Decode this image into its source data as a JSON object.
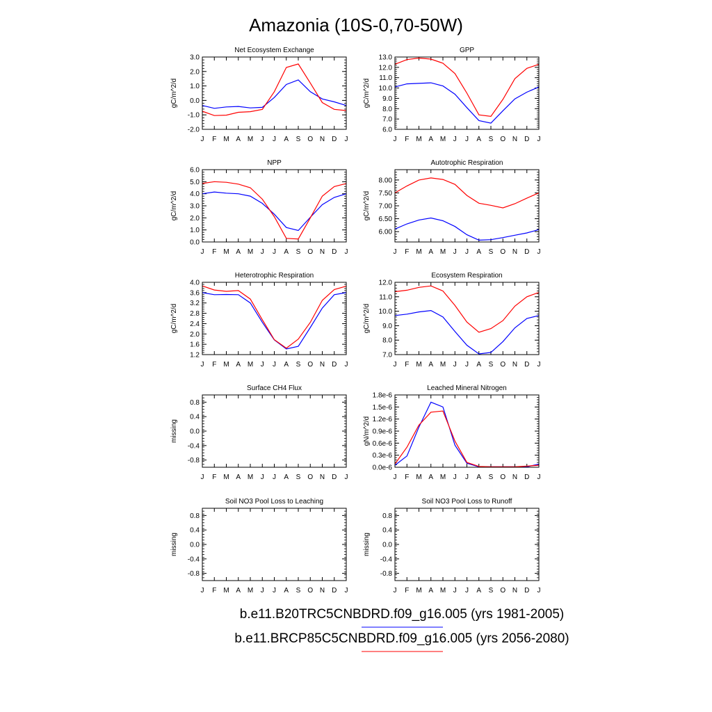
{
  "figure": {
    "title": "Amazonia (10S-0,70-50W)"
  },
  "months": [
    "J",
    "F",
    "M",
    "A",
    "M",
    "J",
    "J",
    "A",
    "S",
    "O",
    "N",
    "D",
    "J"
  ],
  "legend": [
    {
      "label": "b.e11.B20TRC5CNBDRD.f09_g16.005 (yrs 1981-2005)",
      "color": "#0000ff"
    },
    {
      "label": "b.e11.BRCP85C5CNBDRD.f09_g16.005 (yrs 2056-2080)",
      "color": "#ff0000"
    }
  ],
  "chart_data": [
    {
      "type": "line",
      "title": "Net Ecosystem Exchange",
      "ylabel": "gC/m^2/d",
      "ylim": [
        -2.0,
        3.0
      ],
      "yticks": [
        "-2.0",
        "-1.0",
        "0.0",
        "1.0",
        "2.0",
        "3.0"
      ],
      "ytick_values": [
        -2,
        -1,
        0,
        1,
        2,
        3
      ],
      "series": [
        {
          "color": "#0000ff",
          "values": [
            -0.35,
            -0.55,
            -0.45,
            -0.42,
            -0.52,
            -0.48,
            0.2,
            1.1,
            1.42,
            0.6,
            0.1,
            -0.1,
            -0.35
          ]
        },
        {
          "color": "#ff0000",
          "values": [
            -0.75,
            -1.05,
            -1.02,
            -0.82,
            -0.78,
            -0.62,
            0.6,
            2.28,
            2.52,
            1.2,
            -0.15,
            -0.62,
            -0.7
          ]
        }
      ]
    },
    {
      "type": "line",
      "title": "GPP",
      "ylabel": "gC/m^2/d",
      "ylim": [
        6.0,
        13.0
      ],
      "yticks": [
        "6.0",
        "7.0",
        "8.0",
        "9.0",
        "10.0",
        "11.0",
        "12.0",
        "13.0"
      ],
      "ytick_values": [
        6,
        7,
        8,
        9,
        10,
        11,
        12,
        13
      ],
      "series": [
        {
          "color": "#0000ff",
          "values": [
            10.1,
            10.4,
            10.45,
            10.5,
            10.2,
            9.4,
            8.1,
            6.85,
            6.6,
            7.8,
            8.95,
            9.6,
            10.1
          ]
        },
        {
          "color": "#ff0000",
          "values": [
            12.3,
            12.75,
            12.9,
            12.8,
            12.4,
            11.4,
            9.5,
            7.4,
            7.25,
            8.9,
            10.9,
            11.9,
            12.3
          ]
        }
      ]
    },
    {
      "type": "line",
      "title": "NPP",
      "ylabel": "gC/m^2/d",
      "ylim": [
        0.0,
        6.0
      ],
      "yticks": [
        "0.0",
        "1.0",
        "2.0",
        "3.0",
        "4.0",
        "5.0",
        "6.0"
      ],
      "ytick_values": [
        0,
        1,
        2,
        3,
        4,
        5,
        6
      ],
      "series": [
        {
          "color": "#0000ff",
          "values": [
            4.0,
            4.15,
            4.05,
            4.0,
            3.8,
            3.2,
            2.3,
            1.2,
            0.95,
            2.05,
            3.1,
            3.7,
            4.0
          ]
        },
        {
          "color": "#ff0000",
          "values": [
            4.85,
            5.0,
            4.95,
            4.8,
            4.5,
            3.55,
            2.1,
            0.3,
            0.25,
            2.0,
            3.8,
            4.6,
            4.85
          ]
        }
      ]
    },
    {
      "type": "line",
      "title": "Autotrophic Respiration",
      "ylabel": "gC/m^2/d",
      "ylim": [
        5.6,
        8.4
      ],
      "yticks": [
        "6.00",
        "6.50",
        "7.00",
        "7.50",
        "8.00"
      ],
      "ytick_values": [
        6,
        6.5,
        7,
        7.5,
        8
      ],
      "series": [
        {
          "color": "#0000ff",
          "values": [
            6.1,
            6.3,
            6.45,
            6.53,
            6.42,
            6.2,
            5.88,
            5.67,
            5.69,
            5.77,
            5.86,
            5.95,
            6.08
          ]
        },
        {
          "color": "#ff0000",
          "values": [
            7.5,
            7.77,
            8.0,
            8.08,
            8.02,
            7.83,
            7.4,
            7.1,
            7.02,
            6.92,
            7.08,
            7.3,
            7.5
          ]
        }
      ]
    },
    {
      "type": "line",
      "title": "Heterotrophic Respiration",
      "ylabel": "gC/m^2/d",
      "ylim": [
        1.2,
        4.0
      ],
      "yticks": [
        "1.2",
        "1.6",
        "2.0",
        "2.4",
        "2.8",
        "3.2",
        "3.6",
        "4.0"
      ],
      "ytick_values": [
        1.2,
        1.6,
        2.0,
        2.4,
        2.8,
        3.2,
        3.6,
        4.0
      ],
      "series": [
        {
          "color": "#0000ff",
          "values": [
            3.6,
            3.52,
            3.53,
            3.52,
            3.2,
            2.45,
            1.77,
            1.42,
            1.52,
            2.25,
            3.0,
            3.52,
            3.6
          ]
        },
        {
          "color": "#ff0000",
          "values": [
            3.86,
            3.7,
            3.65,
            3.68,
            3.35,
            2.55,
            1.78,
            1.45,
            1.8,
            2.45,
            3.3,
            3.72,
            3.85
          ]
        }
      ]
    },
    {
      "type": "line",
      "title": "Ecosystem Respiration",
      "ylabel": "gC/m^2/d",
      "ylim": [
        7.0,
        12.0
      ],
      "yticks": [
        "7.0",
        "8.0",
        "9.0",
        "10.0",
        "11.0",
        "12.0"
      ],
      "ytick_values": [
        7,
        8,
        9,
        10,
        11,
        12
      ],
      "series": [
        {
          "color": "#0000ff",
          "values": [
            9.7,
            9.8,
            9.95,
            10.05,
            9.6,
            8.6,
            7.65,
            7.05,
            7.15,
            7.9,
            8.85,
            9.5,
            9.7
          ]
        },
        {
          "color": "#ff0000",
          "values": [
            11.35,
            11.45,
            11.65,
            11.75,
            11.4,
            10.4,
            9.25,
            8.55,
            8.8,
            9.35,
            10.35,
            11.0,
            11.3
          ]
        }
      ]
    },
    {
      "type": "line",
      "title": "Surface CH4 Flux",
      "ylabel": "missing",
      "ylim": [
        -1.0,
        1.0
      ],
      "yticks": [
        "-0.8",
        "-0.4",
        "0.0",
        "0.4",
        "0.8"
      ],
      "ytick_values": [
        -0.8,
        -0.4,
        0,
        0.4,
        0.8
      ],
      "series": []
    },
    {
      "type": "line",
      "title": "Leached Mineral Nitrogen",
      "ylabel": "gN/m^2/d",
      "ylim": [
        0.0,
        1.8e-06
      ],
      "yticks": [
        "0.0e-6",
        "0.3e-6",
        "0.6e-6",
        "0.9e-6",
        "1.2e-6",
        "1.5e-6",
        "1.8e-6"
      ],
      "ytick_values": [
        0,
        3e-07,
        6e-07,
        9e-07,
        1.2e-06,
        1.5e-06,
        1.8e-06
      ],
      "series": [
        {
          "color": "#0000ff",
          "values": [
            5e-08,
            2.8e-07,
            1e-06,
            1.62e-06,
            1.5e-06,
            5.5e-07,
            1e-07,
            1e-08,
            1e-08,
            1e-08,
            1e-08,
            1e-08,
            8e-08
          ]
        },
        {
          "color": "#ff0000",
          "values": [
            8e-08,
            5e-07,
            1.05e-06,
            1.37e-06,
            1.4e-06,
            6.5e-07,
            1.2e-07,
            2e-08,
            1e-08,
            1e-08,
            1e-08,
            3e-08,
            5e-08
          ]
        }
      ]
    },
    {
      "type": "line",
      "title": "Soil NO3 Pool Loss to Leaching",
      "ylabel": "missing",
      "ylim": [
        -1.0,
        1.0
      ],
      "yticks": [
        "-0.8",
        "-0.4",
        "0.0",
        "0.4",
        "0.8"
      ],
      "ytick_values": [
        -0.8,
        -0.4,
        0,
        0.4,
        0.8
      ],
      "series": []
    },
    {
      "type": "line",
      "title": "Soil NO3 Pool Loss to Runoff",
      "ylabel": "missing",
      "ylim": [
        -1.0,
        1.0
      ],
      "yticks": [
        "-0.8",
        "-0.4",
        "0.0",
        "0.4",
        "0.8"
      ],
      "ytick_values": [
        -0.8,
        -0.4,
        0,
        0.4,
        0.8
      ],
      "series": []
    }
  ]
}
